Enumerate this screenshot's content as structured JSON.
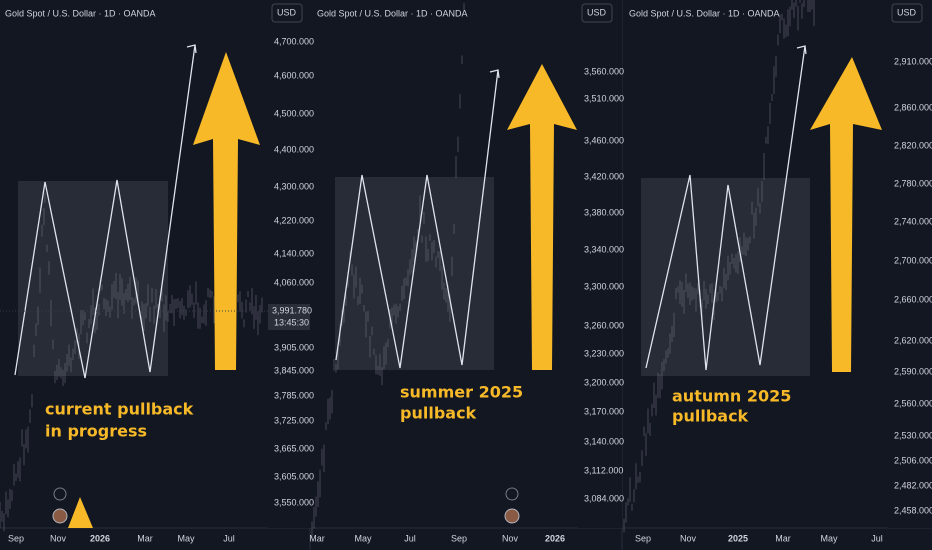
{
  "panels": [
    {
      "title": "Gold Spot / U.S. Dollar · 1D · OANDA",
      "currency": "USD",
      "price_labels": [
        "4,700.000",
        "4,600.000",
        "4,500.000",
        "4,400.000",
        "4,300.000",
        "4,220.000",
        "4,140.000",
        "4,060.000",
        "3,905.000",
        "3,845.000",
        "3,785.000",
        "3,725.000",
        "3,665.000",
        "3,605.000",
        "3,550.000"
      ],
      "last_price": "3,991.780",
      "countdown": "13:45:30",
      "time_labels": [
        "Sep",
        "Nov",
        "2026",
        "Mar",
        "May",
        "Jul"
      ],
      "annotation": [
        "current pullback",
        "in progress"
      ]
    },
    {
      "title": "Gold Spot / U.S. Dollar · 1D · OANDA",
      "currency": "USD",
      "price_labels": [
        "3,560.000",
        "3,510.000",
        "3,460.000",
        "3,420.000",
        "3,380.000",
        "3,340.000",
        "3,300.000",
        "3,260.000",
        "3,230.000",
        "3,200.000",
        "3,170.000",
        "3,140.000",
        "3,112.000",
        "3,084.000"
      ],
      "time_labels": [
        "Mar",
        "May",
        "Jul",
        "Sep",
        "Nov",
        "2026"
      ],
      "annotation": [
        "summer 2025",
        "pullback"
      ]
    },
    {
      "title": "Gold Spot / U.S. Dollar · 1D · OANDA",
      "currency": "USD",
      "price_labels": [
        "2,910.000",
        "2,860.000",
        "2,820.000",
        "2,780.000",
        "2,740.000",
        "2,700.000",
        "2,660.000",
        "2,620.000",
        "2,590.000",
        "2,560.000",
        "2,530.000",
        "2,506.000",
        "2,482.000",
        "2,458.000"
      ],
      "time_labels": [
        "Sep",
        "Nov",
        "2025",
        "Mar",
        "May",
        "Jul"
      ],
      "annotation": [
        "autumn 2025",
        "pullback"
      ]
    }
  ]
}
